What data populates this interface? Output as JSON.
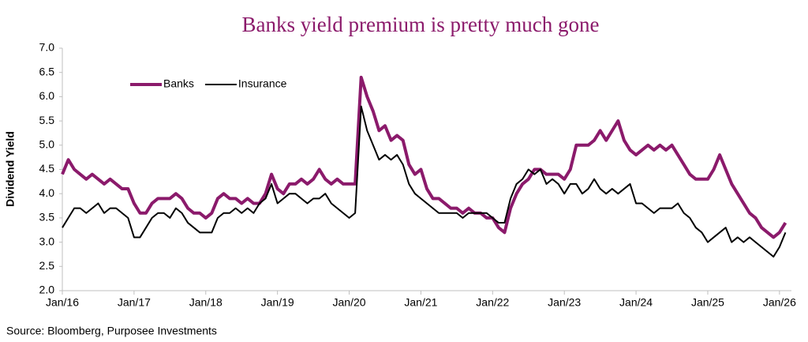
{
  "chart_data": {
    "type": "line",
    "title": "Banks yield premium is pretty much gone",
    "y_label": "Dividend Yield",
    "source": "Source: Bloomberg, Purposee Investments",
    "legend": "upper left",
    "grid": false,
    "x": [
      "2016-01",
      "2016-02",
      "2016-03",
      "2016-04",
      "2016-05",
      "2016-06",
      "2016-07",
      "2016-08",
      "2016-09",
      "2016-10",
      "2016-11",
      "2016-12",
      "2017-01",
      "2017-02",
      "2017-03",
      "2017-04",
      "2017-05",
      "2017-06",
      "2017-07",
      "2017-08",
      "2017-09",
      "2017-10",
      "2017-11",
      "2017-12",
      "2018-01",
      "2018-02",
      "2018-03",
      "2018-04",
      "2018-05",
      "2018-06",
      "2018-07",
      "2018-08",
      "2018-09",
      "2018-10",
      "2018-11",
      "2018-12",
      "2019-01",
      "2019-02",
      "2019-03",
      "2019-04",
      "2019-05",
      "2019-06",
      "2019-07",
      "2019-08",
      "2019-09",
      "2019-10",
      "2019-11",
      "2019-12",
      "2020-01",
      "2020-02",
      "2020-03",
      "2020-04",
      "2020-05",
      "2020-06",
      "2020-07",
      "2020-08",
      "2020-09",
      "2020-10",
      "2020-11",
      "2020-12",
      "2021-01",
      "2021-02",
      "2021-03",
      "2021-04",
      "2021-05",
      "2021-06",
      "2021-07",
      "2021-08",
      "2021-09",
      "2021-10",
      "2021-11",
      "2021-12",
      "2022-01",
      "2022-02",
      "2022-03",
      "2022-04",
      "2022-05",
      "2022-06",
      "2022-07",
      "2022-08",
      "2022-09",
      "2022-10",
      "2022-11",
      "2022-12",
      "2023-01",
      "2023-02",
      "2023-03",
      "2023-04",
      "2023-05",
      "2023-06",
      "2023-07",
      "2023-08",
      "2023-09",
      "2023-10",
      "2023-11",
      "2023-12",
      "2024-01",
      "2024-02",
      "2024-03",
      "2024-04",
      "2024-05",
      "2024-06",
      "2024-07",
      "2024-08",
      "2024-09",
      "2024-10",
      "2024-11",
      "2024-12",
      "2025-01",
      "2025-02",
      "2025-03",
      "2025-04",
      "2025-05",
      "2025-06",
      "2025-07",
      "2025-08",
      "2025-09",
      "2025-10",
      "2025-11",
      "2025-12",
      "2026-01",
      "2026-02"
    ],
    "series": [
      {
        "name": "Banks",
        "color": "#8b1a6b",
        "width": 4,
        "values": [
          4.4,
          4.7,
          4.5,
          4.4,
          4.3,
          4.4,
          4.3,
          4.2,
          4.3,
          4.2,
          4.1,
          4.1,
          3.8,
          3.6,
          3.6,
          3.8,
          3.9,
          3.9,
          3.9,
          4.0,
          3.9,
          3.7,
          3.6,
          3.6,
          3.5,
          3.6,
          3.9,
          4.0,
          3.9,
          3.9,
          3.8,
          3.9,
          3.8,
          3.8,
          4.0,
          4.4,
          4.1,
          4.0,
          4.2,
          4.2,
          4.3,
          4.2,
          4.3,
          4.5,
          4.3,
          4.2,
          4.3,
          4.2,
          4.2,
          4.2,
          6.4,
          6.0,
          5.7,
          5.3,
          5.4,
          5.1,
          5.2,
          5.1,
          4.6,
          4.4,
          4.5,
          4.1,
          3.9,
          3.9,
          3.8,
          3.7,
          3.7,
          3.6,
          3.7,
          3.6,
          3.6,
          3.5,
          3.5,
          3.3,
          3.2,
          3.7,
          4.0,
          4.2,
          4.3,
          4.5,
          4.5,
          4.4,
          4.4,
          4.4,
          4.3,
          4.5,
          5.0,
          5.0,
          5.0,
          5.1,
          5.3,
          5.1,
          5.3,
          5.5,
          5.1,
          4.9,
          4.8,
          4.9,
          5.0,
          4.9,
          5.0,
          4.9,
          5.0,
          4.8,
          4.6,
          4.4,
          4.3,
          4.3,
          4.3,
          4.5,
          4.8,
          4.5,
          4.2,
          4.0,
          3.8,
          3.6,
          3.5,
          3.3,
          3.2,
          3.1,
          3.2,
          3.4
        ]
      },
      {
        "name": "Insurance",
        "color": "#000000",
        "width": 2,
        "values": [
          3.3,
          3.5,
          3.7,
          3.7,
          3.6,
          3.7,
          3.8,
          3.6,
          3.7,
          3.7,
          3.6,
          3.5,
          3.1,
          3.1,
          3.3,
          3.5,
          3.6,
          3.6,
          3.5,
          3.7,
          3.6,
          3.4,
          3.3,
          3.2,
          3.2,
          3.2,
          3.5,
          3.6,
          3.6,
          3.7,
          3.6,
          3.7,
          3.6,
          3.8,
          3.9,
          4.2,
          3.8,
          3.9,
          4.0,
          4.0,
          3.9,
          3.8,
          3.9,
          3.9,
          4.0,
          3.8,
          3.7,
          3.6,
          3.5,
          3.6,
          5.8,
          5.3,
          5.0,
          4.7,
          4.8,
          4.7,
          4.8,
          4.6,
          4.2,
          4.0,
          3.9,
          3.8,
          3.7,
          3.6,
          3.6,
          3.6,
          3.6,
          3.5,
          3.6,
          3.6,
          3.6,
          3.6,
          3.5,
          3.4,
          3.4,
          3.9,
          4.2,
          4.3,
          4.5,
          4.4,
          4.5,
          4.2,
          4.3,
          4.2,
          4.0,
          4.2,
          4.2,
          4.0,
          4.1,
          4.3,
          4.1,
          4.0,
          4.1,
          4.0,
          4.1,
          4.2,
          3.8,
          3.8,
          3.7,
          3.6,
          3.7,
          3.7,
          3.7,
          3.8,
          3.6,
          3.5,
          3.3,
          3.2,
          3.0,
          3.1,
          3.2,
          3.3,
          3.0,
          3.1,
          3.0,
          3.1,
          3.0,
          2.9,
          2.8,
          2.7,
          2.9,
          3.2
        ]
      }
    ],
    "xlim": [
      "2016-01",
      "2026-03"
    ],
    "xticks": [
      {
        "value": "2016-01",
        "label": "Jan/16"
      },
      {
        "value": "2017-01",
        "label": "Jan/17"
      },
      {
        "value": "2018-01",
        "label": "Jan/18"
      },
      {
        "value": "2019-01",
        "label": "Jan/19"
      },
      {
        "value": "2020-01",
        "label": "Jan/20"
      },
      {
        "value": "2021-01",
        "label": "Jan/21"
      },
      {
        "value": "2022-01",
        "label": "Jan/22"
      },
      {
        "value": "2023-01",
        "label": "Jan/23"
      },
      {
        "value": "2024-01",
        "label": "Jan/24"
      },
      {
        "value": "2025-01",
        "label": "Jan/25"
      },
      {
        "value": "2026-01",
        "label": "Jan/26"
      }
    ],
    "ylim": [
      2,
      7
    ],
    "yticks": [
      {
        "value": 2,
        "label": "2.0"
      },
      2.5,
      {
        "value": 3,
        "label": "3.0"
      },
      3.5,
      {
        "value": 4,
        "label": "4.0"
      },
      4.5,
      {
        "value": 5,
        "label": "5.0"
      },
      5.5,
      {
        "value": 6,
        "label": "6.0"
      },
      6.5,
      {
        "value": 7,
        "label": "7.0"
      }
    ]
  }
}
